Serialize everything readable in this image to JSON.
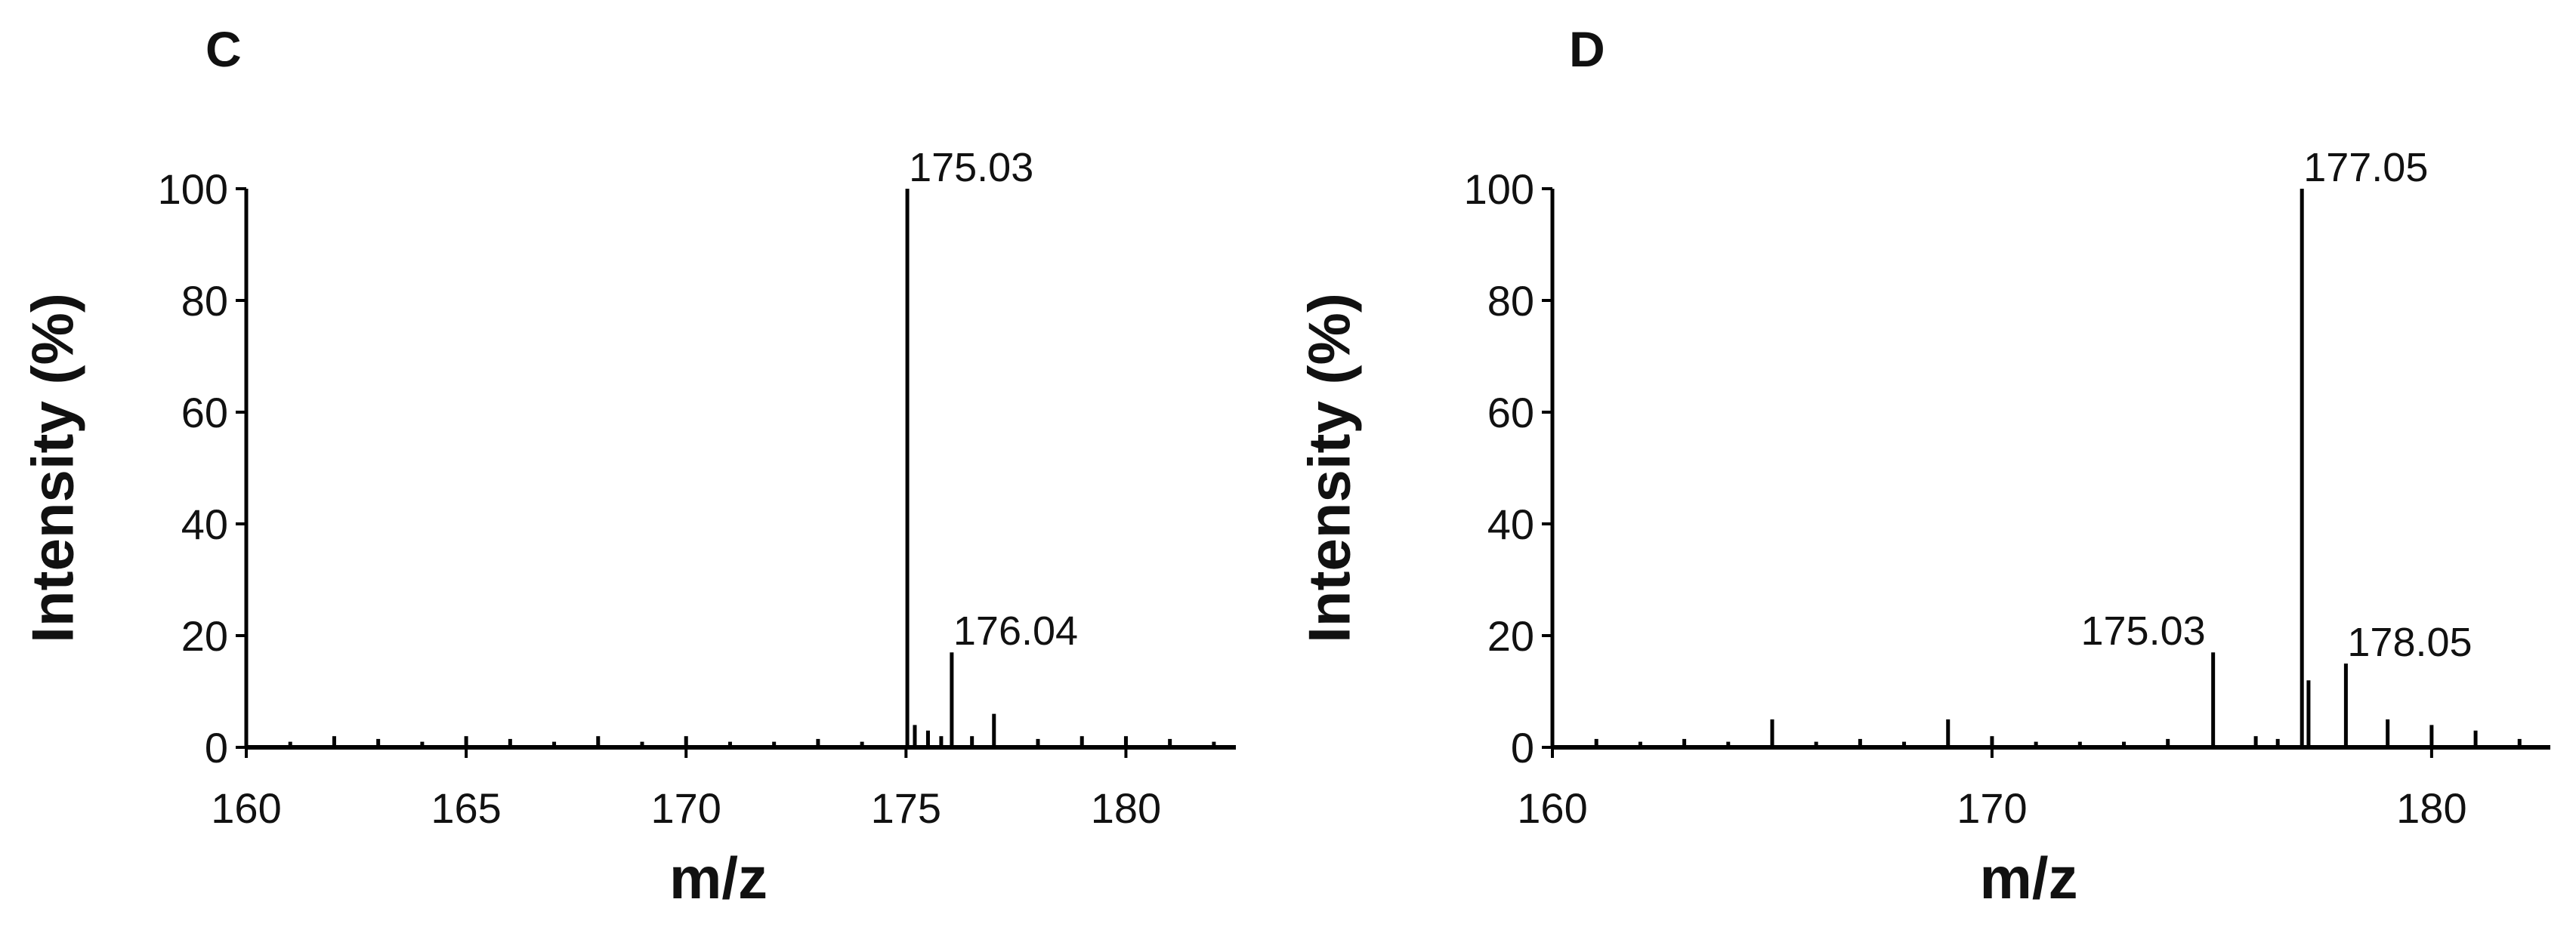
{
  "chart_data": [
    {
      "type": "stem",
      "panel": "C",
      "xlabel": "m/z",
      "ylabel": "Intensity (%)",
      "color": "#000000",
      "x": [
        161,
        162,
        163,
        164,
        165,
        166,
        167,
        168,
        169,
        170,
        171,
        172,
        173,
        174,
        175.03,
        175.2,
        175.5,
        175.8,
        176.04,
        176.5,
        177,
        178,
        179,
        180,
        181,
        182
      ],
      "values": [
        1,
        2,
        1.5,
        1,
        2,
        1.5,
        1,
        2,
        1,
        2,
        1,
        1,
        1.5,
        1,
        100,
        4,
        3,
        2,
        17,
        2,
        6,
        1.5,
        2,
        2,
        1.5,
        1
      ],
      "annotations": [
        {
          "text": "175.03",
          "x": 175.03,
          "y": 100
        },
        {
          "text": "176.04",
          "x": 176.04,
          "y": 17
        }
      ],
      "xlim": [
        160,
        182.5
      ],
      "xticks": [
        160,
        165,
        170,
        175,
        180
      ],
      "ylim": [
        0,
        100
      ],
      "yticks": [
        0,
        20,
        40,
        60,
        80,
        100
      ]
    },
    {
      "type": "stem",
      "panel": "D",
      "xlabel": "m/z",
      "ylabel": "Intensity (%)",
      "color": "#000000",
      "x": [
        161,
        162,
        163,
        164,
        165,
        166,
        167,
        168,
        169,
        170,
        171,
        172,
        173,
        174,
        175.03,
        176,
        176.5,
        177.05,
        177.2,
        178.05,
        179,
        180,
        181,
        182
      ],
      "values": [
        1.5,
        1,
        1.5,
        1,
        5,
        1,
        1.5,
        1,
        5,
        2,
        1,
        1,
        1,
        1.5,
        17,
        2,
        1.5,
        100,
        12,
        15,
        5,
        4,
        3,
        1.5
      ],
      "annotations": [
        {
          "text": "175.03",
          "x": 175.03,
          "y": 17
        },
        {
          "text": "177.05",
          "x": 177.05,
          "y": 100
        },
        {
          "text": "178.05",
          "x": 178.05,
          "y": 15
        }
      ],
      "xlim": [
        160,
        182.7
      ],
      "xticks": [
        160,
        170,
        180
      ],
      "ylim": [
        0,
        100
      ],
      "yticks": [
        0,
        20,
        40,
        60,
        80,
        100
      ]
    }
  ]
}
